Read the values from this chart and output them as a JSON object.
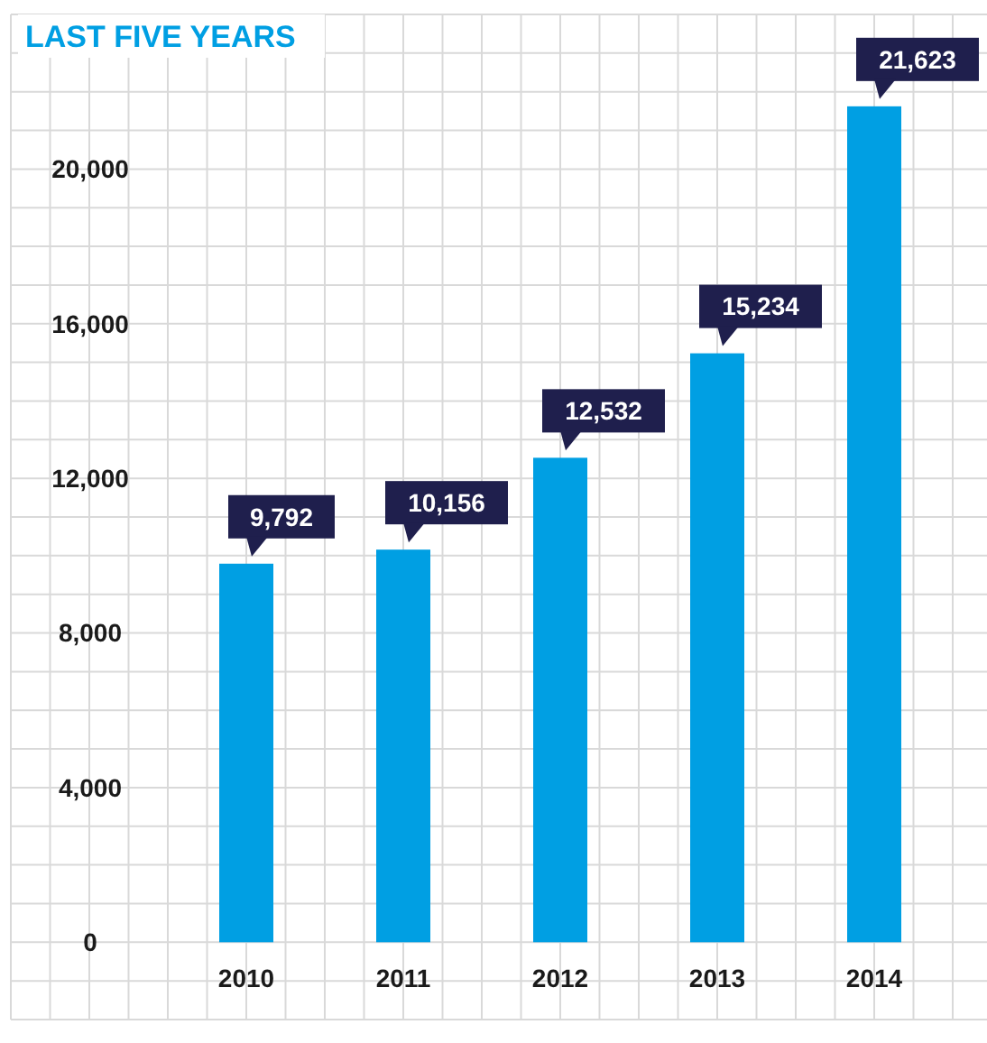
{
  "chart_data": {
    "type": "bar",
    "title": "LAST FIVE YEARS",
    "categories": [
      "2010",
      "2011",
      "2012",
      "2013",
      "2014"
    ],
    "values": [
      9792,
      10156,
      12532,
      15234,
      21623
    ],
    "color": "#009fe3",
    "value_labels": [
      "9,792",
      "10,156",
      "12,532",
      "15,234",
      "21,623"
    ],
    "ylim": [
      -2000,
      24000
    ],
    "yticks": [
      {
        "value": -2000,
        "label": null
      },
      {
        "value": -1000,
        "label": null
      },
      {
        "value": 0,
        "label": "0"
      },
      {
        "value": 1000,
        "label": null
      },
      {
        "value": 2000,
        "label": null
      },
      {
        "value": 3000,
        "label": null
      },
      {
        "value": 4000,
        "label": "4,000"
      },
      {
        "value": 5000,
        "label": null
      },
      {
        "value": 6000,
        "label": null
      },
      {
        "value": 7000,
        "label": null
      },
      {
        "value": 8000,
        "label": "8,000"
      },
      {
        "value": 9000,
        "label": null
      },
      {
        "value": 10000,
        "label": null
      },
      {
        "value": 11000,
        "label": null
      },
      {
        "value": 12000,
        "label": "12,000"
      },
      {
        "value": 13000,
        "label": null
      },
      {
        "value": 14000,
        "label": null
      },
      {
        "value": 15000,
        "label": null
      },
      {
        "value": 16000,
        "label": "16,000"
      },
      {
        "value": 17000,
        "label": null
      },
      {
        "value": 18000,
        "label": null
      },
      {
        "value": 19000,
        "label": null
      },
      {
        "value": 20000,
        "label": "20,000"
      },
      {
        "value": 21000,
        "label": null
      },
      {
        "value": 22000,
        "label": null
      },
      {
        "value": 23000,
        "label": null
      },
      {
        "value": 24000,
        "label": null
      }
    ],
    "grid": true
  }
}
